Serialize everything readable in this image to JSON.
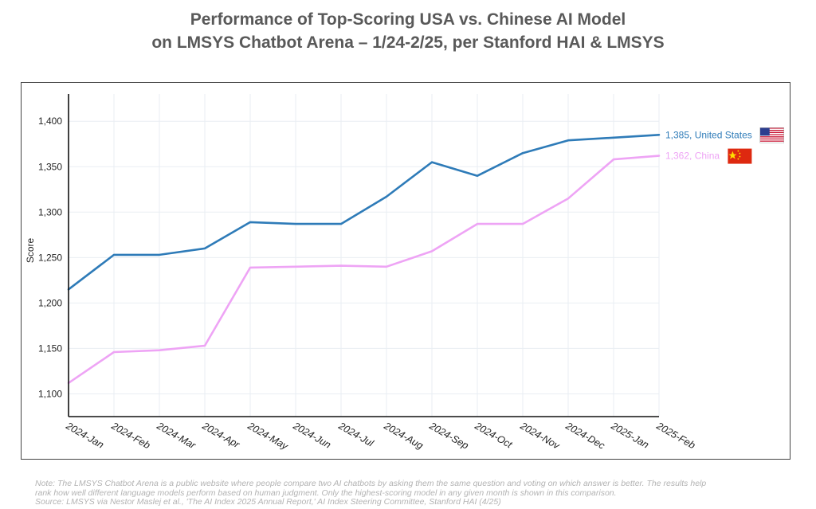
{
  "title": {
    "line1": "Performance of Top-Scoring USA vs. Chinese AI Model",
    "line2": "on LMSYS Chatbot Arena – 1/24-2/25, per Stanford HAI & LMSYS"
  },
  "colors": {
    "us": "#2e7bb8",
    "china": "#eea4f5",
    "axis": "#111111",
    "grid": "#e9eef3"
  },
  "chart_data": {
    "type": "line",
    "categories": [
      "2024-Jan",
      "2024-Feb",
      "2024-Mar",
      "2024-Apr",
      "2024-May",
      "2024-Jun",
      "2024-Jul",
      "2024-Aug",
      "2024-Sep",
      "2024-Oct",
      "2024-Nov",
      "2024-Dec",
      "2025-Jan",
      "2025-Feb"
    ],
    "ylabel": "Score",
    "xlabel": "",
    "ylim": [
      1075,
      1430
    ],
    "yticks": [
      1100,
      1150,
      1200,
      1250,
      1300,
      1350,
      1400
    ],
    "ytick_labels": [
      "1,100",
      "1,150",
      "1,200",
      "1,250",
      "1,300",
      "1,350",
      "1,400"
    ],
    "grid": true,
    "series": [
      {
        "key": "us",
        "values": [
          1215,
          1253,
          1253,
          1260,
          1289,
          1287,
          1287,
          1317,
          1355,
          1340,
          1365,
          1379,
          1382,
          1385
        ],
        "end_label": "1,385, United States",
        "flag": "us-flag-icon"
      },
      {
        "key": "china",
        "values": [
          1112,
          1146,
          1148,
          1153,
          1239,
          1240,
          1241,
          1240,
          1257,
          1287,
          1287,
          1315,
          1358,
          1362
        ],
        "end_label": "1,362, China",
        "flag": "china-flag-icon"
      }
    ]
  },
  "footnote": {
    "line1": "Note: The LMSYS Chatbot Arena is a public website where people compare two AI chatbots by asking them the same question and voting on which answer is better. The results help",
    "line2": "rank how well different language models perform based on human judgment. Only the highest-scoring model in any given month is shown in this comparison.",
    "line3": "Source: LMSYS via Nestor Maslej et al., 'The AI Index 2025 Annual Report,' AI Index Steering Committee, Stanford HAI (4/25)"
  }
}
